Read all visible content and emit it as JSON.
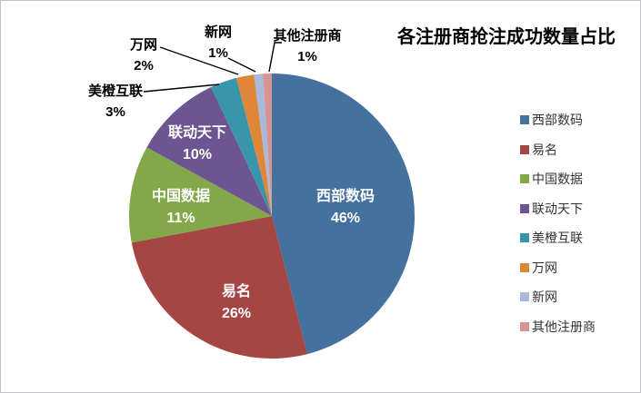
{
  "chart_data": {
    "type": "pie",
    "title": "各注册商抢注成功数量占比",
    "start_angle_deg": 0,
    "direction": "clockwise",
    "legend_position": "right",
    "grid": false,
    "slices": [
      {
        "label": "西部数码",
        "value": 46,
        "pct_label": "46%",
        "color": "#44719e",
        "label_placement": "inside"
      },
      {
        "label": "易名",
        "value": 26,
        "pct_label": "26%",
        "color": "#a64643",
        "label_placement": "inside"
      },
      {
        "label": "中国数据",
        "value": 11,
        "pct_label": "11%",
        "color": "#83a84a",
        "label_placement": "inside"
      },
      {
        "label": "联动天下",
        "value": 10,
        "pct_label": "10%",
        "color": "#6d5591",
        "label_placement": "inside"
      },
      {
        "label": "美橙互联",
        "value": 3,
        "pct_label": "3%",
        "color": "#3995ac",
        "label_placement": "callout"
      },
      {
        "label": "万网",
        "value": 2,
        "pct_label": "2%",
        "color": "#df8738",
        "label_placement": "callout"
      },
      {
        "label": "新网",
        "value": 1,
        "pct_label": "1%",
        "color": "#a9b9d9",
        "label_placement": "callout"
      },
      {
        "label": "其他注册商",
        "value": 1,
        "pct_label": "1%",
        "color": "#d69593",
        "label_placement": "callout"
      }
    ],
    "legend": [
      "西部数码",
      "易名",
      "中国数据",
      "联动天下",
      "美橙互联",
      "万网",
      "新网",
      "其他注册商"
    ]
  }
}
